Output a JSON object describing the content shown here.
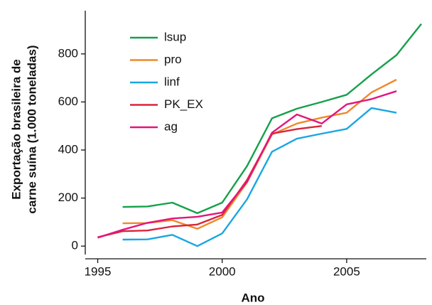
{
  "chart_data": {
    "type": "line",
    "xlabel": "Ano",
    "ylabel": [
      "Exportação brasileira de",
      "carne suína (1.000 toneladas)"
    ],
    "xlim": [
      1994.5,
      2008.2
    ],
    "ylim": [
      -35,
      980
    ],
    "xticks": [
      1995,
      2000,
      2005
    ],
    "yticks": [
      0,
      200,
      400,
      600,
      800
    ],
    "grid": false,
    "legend": "upper left",
    "series": [
      {
        "name": "lsup",
        "color": "#15a04a",
        "x": [
          1996,
          1997,
          1998,
          1999,
          2000,
          2001,
          2002,
          2003,
          2004,
          2005,
          2006,
          2007,
          2008
        ],
        "values": [
          163,
          165,
          181,
          137,
          181,
          333,
          532,
          572,
          600,
          630,
          715,
          795,
          925
        ]
      },
      {
        "name": "pro",
        "color": "#f0882c",
        "x": [
          1996,
          1997,
          1998,
          1999,
          2000,
          2001,
          2002,
          2003,
          2004,
          2005,
          2006,
          2007
        ],
        "values": [
          95,
          96,
          108,
          72,
          120,
          265,
          465,
          510,
          535,
          555,
          640,
          693
        ]
      },
      {
        "name": "linf",
        "color": "#1aa6e2",
        "x": [
          1996,
          1997,
          1998,
          1999,
          2000,
          2001,
          2002,
          2003,
          2004,
          2005,
          2006,
          2007
        ],
        "values": [
          27,
          28,
          47,
          0,
          53,
          195,
          393,
          447,
          468,
          488,
          575,
          555
        ]
      },
      {
        "name": "PK_EX",
        "color": "#d8263b",
        "x": [
          1995,
          1996,
          1997,
          1998,
          1999,
          2000,
          2001,
          2002,
          2003,
          2004
        ],
        "values": [
          37,
          62,
          65,
          82,
          90,
          130,
          275,
          468,
          487,
          500
        ]
      },
      {
        "name": "ag",
        "color": "#e4157c",
        "x": [
          1995,
          1996,
          1997,
          1998,
          1999,
          2000,
          2001,
          2002,
          2003,
          2004,
          2005,
          2006,
          2007
        ],
        "values": [
          35,
          68,
          97,
          115,
          122,
          140,
          268,
          472,
          548,
          510,
          590,
          612,
          645
        ]
      }
    ]
  }
}
